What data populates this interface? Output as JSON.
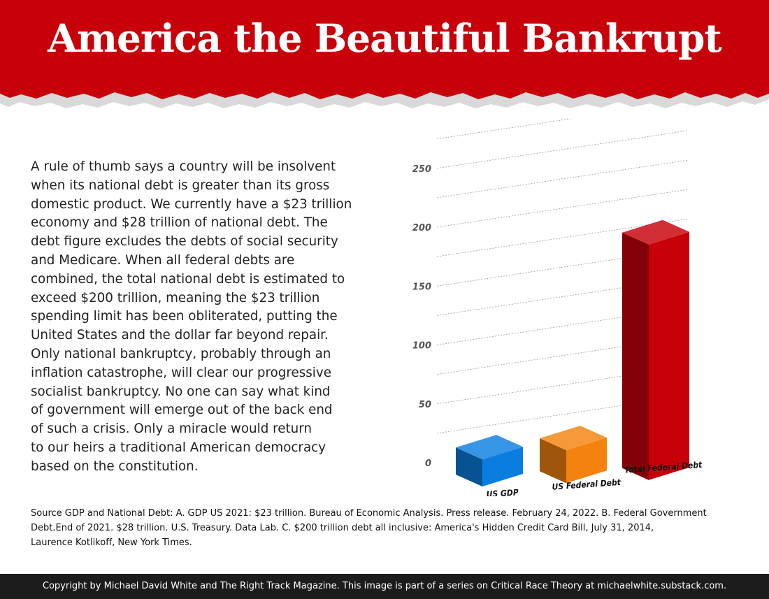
{
  "header": {
    "title": "America the Beautiful Bankrupt",
    "color": "#c8000a"
  },
  "body_text": {
    "lines": [
      "A rule of thumb says a country will be insolvent",
      "when its national debt is greater than its gross",
      "domestic product. We currently have a $23 trillion",
      "economy and $28 trillion of national debt. The",
      "debt figure excludes the debts of social security",
      "and Medicare. When all federal debts are",
      "combined, the total national debt is estimated to",
      "exceed $200 trillion, meaning the $23 trillion",
      "spending limit has been obliterated, putting the",
      "United States and the dollar far beyond repair.",
      "Only national bankruptcy, probably through an",
      "inflation catastrophe, will clear our progressive",
      "socialist bankruptcy. No one can say what kind",
      "of government will emerge out of the back end",
      "of such a crisis. Only a miracle would return",
      "to our heirs a traditional American democracy",
      "based on the constitution."
    ]
  },
  "chart_data": {
    "type": "bar",
    "title": "",
    "xlabel": "",
    "ylabel": "",
    "ylim": [
      0,
      250
    ],
    "yticks": [
      0,
      50,
      100,
      150,
      200,
      250
    ],
    "grid": true,
    "style": "3d",
    "categories": [
      "US GDP",
      "US Federal Debt",
      "Total Federal Debt"
    ],
    "values": [
      23,
      28,
      200
    ],
    "colors": [
      "#0a7ee0",
      "#f4820f",
      "#c8000a"
    ]
  },
  "source": {
    "lines": [
      "Source GDP and National Debt: A. GDP US 2021: $23 trillion. Bureau of Economic Analysis. Press release. February 24, 2022. B. Federal Government",
      "Debt.End of 2021. $28 trillion. U.S. Treasury. Data Lab. C. $200 trillion debt all inclusive: America's Hidden Credit Card Bill, July 31, 2014,",
      "Laurence Kotlikoff, New York Times."
    ]
  },
  "footer": {
    "text": "Copyright by Michael David White and The Right Track Magazine. This image is part of a series on Critical Race Theory at michaelwhite.substack.com."
  }
}
